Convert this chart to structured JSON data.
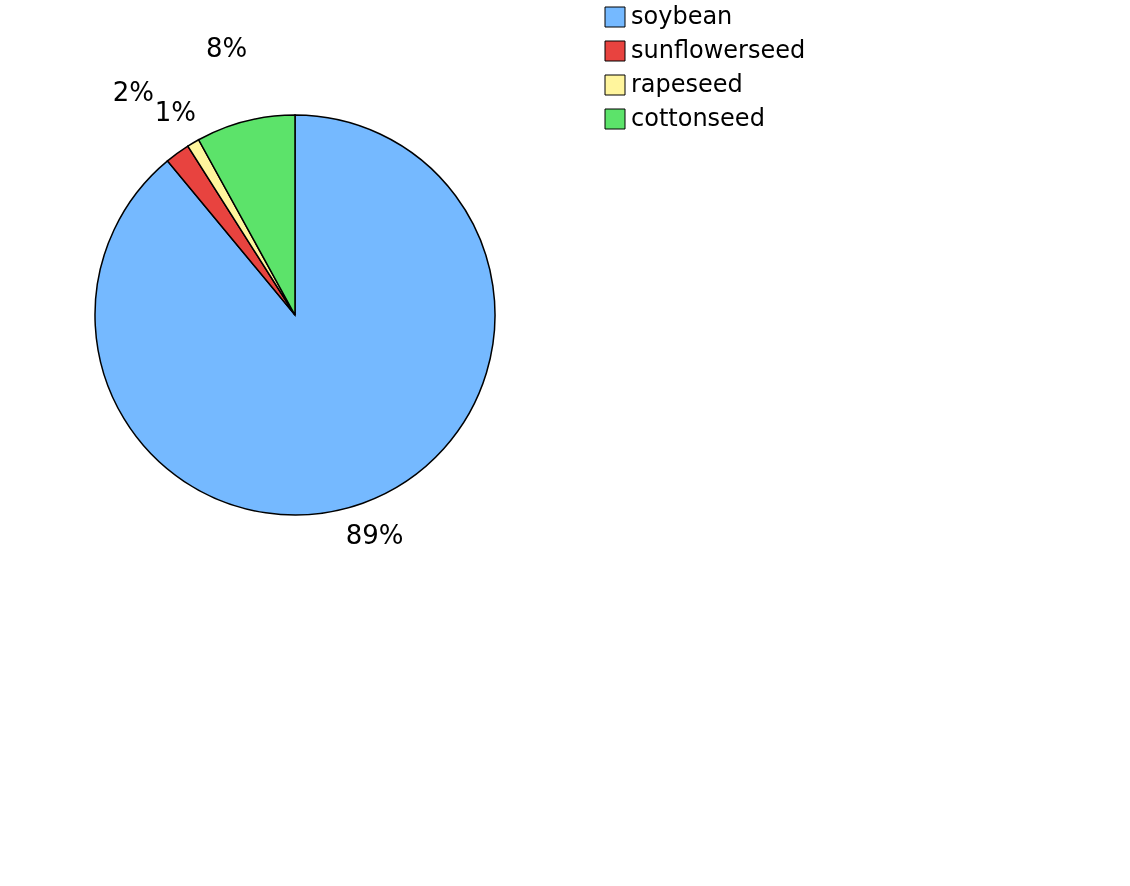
{
  "chart_data": {
    "type": "pie",
    "categories": [
      "soybean",
      "sunflowerseed",
      "rapeseed",
      "cottonseed"
    ],
    "values": [
      89,
      2,
      1,
      8
    ],
    "colors": [
      "#75b9ff",
      "#e8433f",
      "#fff59d",
      "#5ce36a"
    ],
    "value_labels": [
      "89%",
      "2%",
      "1%",
      "8%"
    ],
    "legend": "right"
  }
}
